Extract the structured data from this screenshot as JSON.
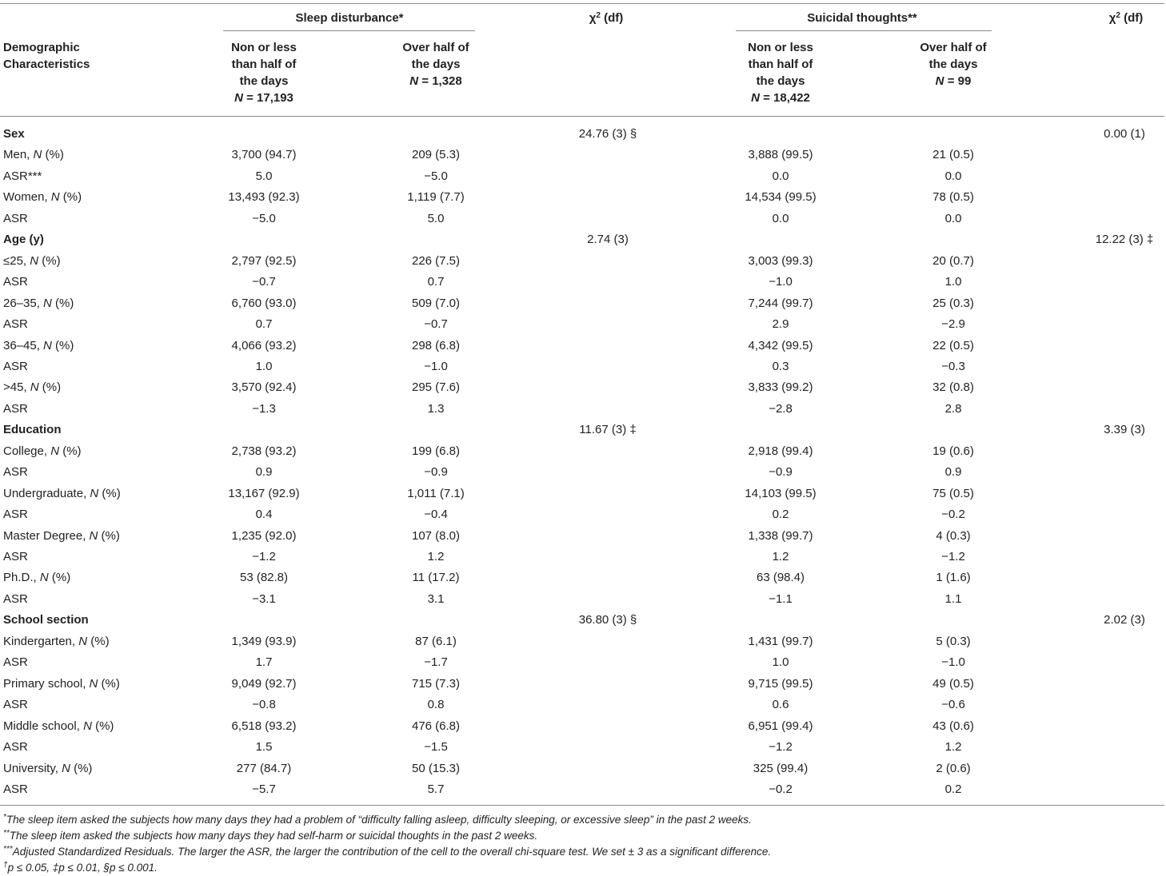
{
  "header": {
    "demographic_label_1": "Demographic",
    "demographic_label_2": "Characteristics",
    "sleep_group": "Sleep disturbance*",
    "chi1_base": "χ",
    "chi1_sup": "2",
    "chi1_rest": " (df)",
    "suicidal_group": "Suicidal thoughts**",
    "chi2_base": "χ",
    "chi2_sup": "2",
    "chi2_rest": " (df)",
    "sleep_col1": [
      "Non or less",
      "than half of",
      "the days"
    ],
    "sleep_col1_n_prefix": "N",
    "sleep_col1_n_value": " = 17,193",
    "sleep_col2": [
      "Over half of",
      "the days"
    ],
    "sleep_col2_n_prefix": "N",
    "sleep_col2_n_value": " = 1,328",
    "sui_col1": [
      "Non or less",
      "than half of",
      "the days"
    ],
    "sui_col1_n_prefix": "N",
    "sui_col1_n_value": " = 18,422",
    "sui_col2": [
      "Over half of",
      "the days"
    ],
    "sui_col2_n_prefix": "N",
    "sui_col2_n_value": " = 99"
  },
  "rows": [
    {
      "label": "Sex",
      "bold": true,
      "chi1": "24.76 (3) §",
      "chi2": "0.00 (1)"
    },
    {
      "label": "Men, ",
      "italic": "N",
      "suffix": " (%)",
      "s1": "3,700 (94.7)",
      "s2": "209 (5.3)",
      "t1": "3,888 (99.5)",
      "t2": "21 (0.5)"
    },
    {
      "label": "ASR***",
      "s1": "5.0",
      "s2": "−5.0",
      "t1": "0.0",
      "t2": "0.0"
    },
    {
      "label": "Women, ",
      "italic": "N",
      "suffix": " (%)",
      "s1": "13,493 (92.3)",
      "s2": "1,119 (7.7)",
      "t1": "14,534 (99.5)",
      "t2": "78 (0.5)"
    },
    {
      "label": "ASR",
      "s1": "−5.0",
      "s2": "5.0",
      "t1": "0.0",
      "t2": "0.0"
    },
    {
      "label": "Age (y)",
      "bold": true,
      "chi1": "2.74 (3)",
      "chi2": "12.22 (3) ‡"
    },
    {
      "label": "≤25, ",
      "italic": "N",
      "suffix": " (%)",
      "s1": "2,797 (92.5)",
      "s2": "226 (7.5)",
      "t1": "3,003 (99.3)",
      "t2": "20 (0.7)"
    },
    {
      "label": "ASR",
      "s1": "−0.7",
      "s2": "0.7",
      "t1": "−1.0",
      "t2": "1.0"
    },
    {
      "label": "26–35, ",
      "italic": "N",
      "suffix": " (%)",
      "s1": "6,760 (93.0)",
      "s2": "509 (7.0)",
      "t1": "7,244 (99.7)",
      "t2": "25 (0.3)"
    },
    {
      "label": "ASR",
      "s1": "0.7",
      "s2": "−0.7",
      "t1": "2.9",
      "t2": "−2.9"
    },
    {
      "label": "36–45, ",
      "italic": "N",
      "suffix": " (%)",
      "s1": "4,066 (93.2)",
      "s2": "298 (6.8)",
      "t1": "4,342 (99.5)",
      "t2": "22 (0.5)"
    },
    {
      "label": "ASR",
      "s1": "1.0",
      "s2": "−1.0",
      "t1": "0.3",
      "t2": "−0.3"
    },
    {
      "label": ">45, ",
      "italic": "N",
      "suffix": " (%)",
      "s1": "3,570 (92.4)",
      "s2": "295 (7.6)",
      "t1": "3,833 (99.2)",
      "t2": "32 (0.8)"
    },
    {
      "label": "ASR",
      "s1": "−1.3",
      "s2": "1.3",
      "t1": "−2.8",
      "t2": "2.8"
    },
    {
      "label": "Education",
      "bold": true,
      "chi1": "11.67 (3) ‡",
      "chi2": "3.39 (3)"
    },
    {
      "label": "College, ",
      "italic": "N",
      "suffix": " (%)",
      "s1": "2,738 (93.2)",
      "s2": "199 (6.8)",
      "t1": "2,918 (99.4)",
      "t2": "19 (0.6)"
    },
    {
      "label": "ASR",
      "s1": "0.9",
      "s2": "−0.9",
      "t1": "−0.9",
      "t2": "0.9"
    },
    {
      "label": "Undergraduate, ",
      "italic": "N",
      "suffix": " (%)",
      "s1": "13,167 (92.9)",
      "s2": "1,011 (7.1)",
      "t1": "14,103 (99.5)",
      "t2": "75 (0.5)"
    },
    {
      "label": "ASR",
      "s1": "0.4",
      "s2": "−0.4",
      "t1": "0.2",
      "t2": "−0.2"
    },
    {
      "label": "Master Degree, ",
      "italic": "N",
      "suffix": " (%)",
      "s1": "1,235 (92.0)",
      "s2": "107 (8.0)",
      "t1": "1,338 (99.7)",
      "t2": "4 (0.3)"
    },
    {
      "label": "ASR",
      "s1": "−1.2",
      "s2": "1.2",
      "t1": "1.2",
      "t2": "−1.2"
    },
    {
      "label": "Ph.D., ",
      "italic": "N",
      "suffix": " (%)",
      "s1": "53 (82.8)",
      "s2": "11 (17.2)",
      "t1": "63 (98.4)",
      "t2": "1 (1.6)"
    },
    {
      "label": "ASR",
      "s1": "−3.1",
      "s2": "3.1",
      "t1": "−1.1",
      "t2": "1.1"
    },
    {
      "label": "School section",
      "bold": true,
      "chi1": "36.80 (3) §",
      "chi2": "2.02 (3)"
    },
    {
      "label": "Kindergarten, ",
      "italic": "N",
      "suffix": " (%)",
      "s1": "1,349 (93.9)",
      "s2": "87 (6.1)",
      "t1": "1,431 (99.7)",
      "t2": "5 (0.3)"
    },
    {
      "label": "ASR",
      "s1": "1.7",
      "s2": "−1.7",
      "t1": "1.0",
      "t2": "−1.0"
    },
    {
      "label": "Primary school, ",
      "italic": "N",
      "suffix": " (%)",
      "s1": "9,049 (92.7)",
      "s2": "715 (7.3)",
      "t1": "9,715 (99.5)",
      "t2": "49 (0.5)"
    },
    {
      "label": "ASR",
      "s1": "−0.8",
      "s2": "0.8",
      "t1": "0.6",
      "t2": "−0.6"
    },
    {
      "label": "Middle school, ",
      "italic": "N",
      "suffix": " (%)",
      "s1": "6,518 (93.2)",
      "s2": "476 (6.8)",
      "t1": "6,951 (99.4)",
      "t2": "43 (0.6)"
    },
    {
      "label": "ASR",
      "s1": "1.5",
      "s2": "−1.5",
      "t1": "−1.2",
      "t2": "1.2"
    },
    {
      "label": "University, ",
      "italic": "N",
      "suffix": " (%)",
      "s1": "277 (84.7)",
      "s2": "50 (15.3)",
      "t1": "325 (99.4)",
      "t2": "2 (0.6)"
    },
    {
      "label": "ASR",
      "s1": "−5.7",
      "s2": "5.7",
      "t1": "−0.2",
      "t2": "0.2"
    }
  ],
  "footnotes": [
    {
      "mark": "*",
      "text": "The sleep item asked the subjects how many days they had a problem of “difficulty falling asleep, difficulty sleeping, or excessive sleep” in the past 2 weeks."
    },
    {
      "mark": "**",
      "text": "The sleep item asked the subjects how many days they had self-harm or suicidal thoughts in the past 2 weeks."
    },
    {
      "mark": "***",
      "text": "Adjusted Standardized Residuals. The larger the ASR, the larger the contribution of the cell to the overall chi-square test. We set ± 3 as a significant difference."
    },
    {
      "mark": "†",
      "text": "p ≤ 0.05, ‡p ≤ 0.01, §p ≤ 0.001."
    }
  ]
}
